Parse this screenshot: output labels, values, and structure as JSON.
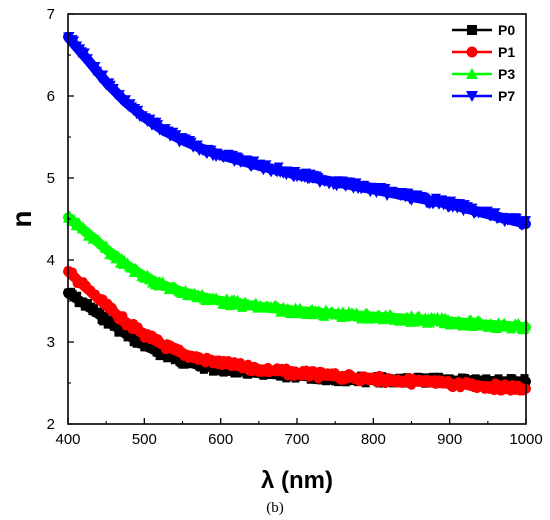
{
  "chart_data": {
    "type": "line",
    "xlabel": "λ (nm)",
    "ylabel": "n",
    "caption": "(b)",
    "xlim": [
      400,
      1000
    ],
    "ylim": [
      2,
      7
    ],
    "xticks": [
      400,
      500,
      600,
      700,
      800,
      900,
      1000
    ],
    "yticks": [
      2,
      3,
      4,
      5,
      6,
      7
    ],
    "legend_position": "top-right",
    "grid": false,
    "series": [
      {
        "name": "P0",
        "color": "#000000",
        "marker": "square",
        "x": [
          400,
          425,
          450,
          475,
          500,
          525,
          550,
          575,
          600,
          650,
          700,
          750,
          800,
          850,
          900,
          950,
          1000
        ],
        "y": [
          3.6,
          3.44,
          3.27,
          3.1,
          2.96,
          2.85,
          2.77,
          2.71,
          2.67,
          2.62,
          2.59,
          2.56,
          2.54,
          2.53,
          2.53,
          2.52,
          2.52
        ]
      },
      {
        "name": "P1",
        "color": "#ff0000",
        "marker": "circle",
        "x": [
          400,
          425,
          450,
          475,
          500,
          525,
          550,
          575,
          600,
          650,
          700,
          750,
          800,
          850,
          900,
          950,
          1000
        ],
        "y": [
          3.86,
          3.65,
          3.44,
          3.25,
          3.09,
          2.96,
          2.86,
          2.79,
          2.74,
          2.67,
          2.62,
          2.58,
          2.55,
          2.52,
          2.49,
          2.46,
          2.43
        ]
      },
      {
        "name": "P3",
        "color": "#00ff00",
        "marker": "triangle-up",
        "x": [
          400,
          425,
          450,
          475,
          500,
          525,
          550,
          575,
          600,
          650,
          700,
          750,
          800,
          850,
          900,
          950,
          1000
        ],
        "y": [
          4.52,
          4.33,
          4.13,
          3.95,
          3.8,
          3.69,
          3.61,
          3.55,
          3.5,
          3.43,
          3.38,
          3.34,
          3.31,
          3.28,
          3.25,
          3.21,
          3.18
        ]
      },
      {
        "name": "P7",
        "color": "#0000ff",
        "marker": "triangle-down",
        "x": [
          400,
          425,
          450,
          475,
          500,
          525,
          550,
          575,
          600,
          650,
          700,
          750,
          800,
          850,
          900,
          950,
          1000
        ],
        "y": [
          6.72,
          6.45,
          6.17,
          5.93,
          5.74,
          5.58,
          5.46,
          5.36,
          5.28,
          5.15,
          5.04,
          4.95,
          4.86,
          4.77,
          4.68,
          4.56,
          4.44
        ]
      }
    ]
  }
}
